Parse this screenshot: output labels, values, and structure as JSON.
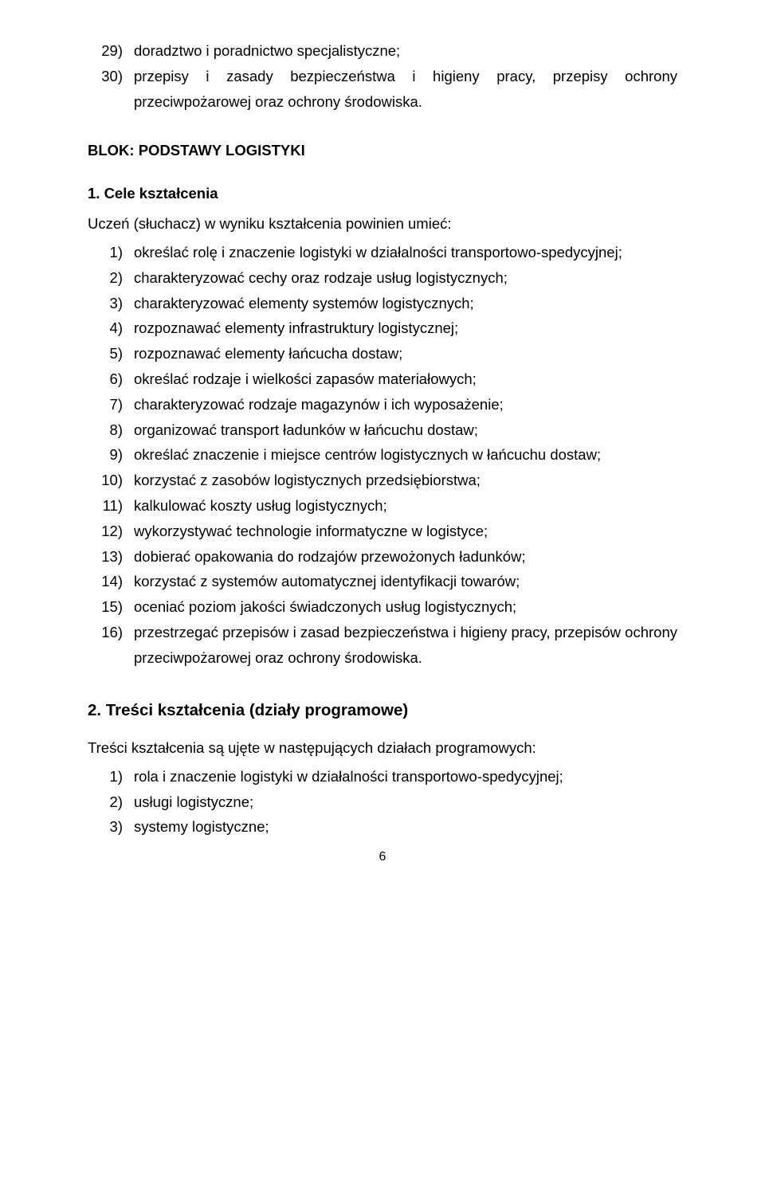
{
  "top_list": [
    {
      "n": "29)",
      "t": "doradztwo i poradnictwo specjalistyczne;",
      "indent": true
    },
    {
      "n": "30)",
      "t": "przepisy i zasady bezpieczeństwa i higieny pracy, przepisy ochrony przeciwpożarowej oraz ochrony środowiska.",
      "indent": true
    }
  ],
  "block_title": "BLOK: PODSTAWY LOGISTYKI",
  "goals_title": "1. Cele kształcenia",
  "goals_intro": "Uczeń (słuchacz) w wyniku kształcenia powinien umieć:",
  "goals_list": [
    {
      "n": "1)",
      "t": "określać rolę i znaczenie logistyki w działalności transportowo-spedycyjnej;"
    },
    {
      "n": "2)",
      "t": "charakteryzować cechy oraz rodzaje usług logistycznych;"
    },
    {
      "n": "3)",
      "t": "charakteryzować elementy systemów logistycznych;"
    },
    {
      "n": "4)",
      "t": "rozpoznawać elementy infrastruktury logistycznej;"
    },
    {
      "n": "5)",
      "t": "rozpoznawać elementy łańcucha dostaw;"
    },
    {
      "n": "6)",
      "t": "określać rodzaje i wielkości zapasów materiałowych;"
    },
    {
      "n": "7)",
      "t": "charakteryzować rodzaje magazynów i ich wyposażenie;"
    },
    {
      "n": "8)",
      "t": "organizować transport ładunków w łańcuchu dostaw;"
    },
    {
      "n": "9)",
      "t": "określać znaczenie i miejsce centrów logistycznych w łańcuchu dostaw;"
    },
    {
      "n": "10)",
      "t": "korzystać z zasobów logistycznych przedsiębiorstwa;"
    },
    {
      "n": "11)",
      "t": "kalkulować koszty usług logistycznych;"
    },
    {
      "n": "12)",
      "t": "wykorzystywać technologie informatyczne w logistyce;"
    },
    {
      "n": "13)",
      "t": "dobierać opakowania do rodzajów przewożonych ładunków;"
    },
    {
      "n": "14)",
      "t": "korzystać z systemów automatycznej identyfikacji towarów;"
    },
    {
      "n": "15)",
      "t": "oceniać poziom jakości świadczonych usług logistycznych;"
    },
    {
      "n": "16)",
      "t": "przestrzegać przepisów i zasad bezpieczeństwa i higieny pracy, przepisów ochrony przeciwpożarowej oraz ochrony środowiska."
    }
  ],
  "contents_title": "2. Treści kształcenia (działy programowe)",
  "contents_intro": "Treści kształcenia są ujęte w następujących działach programowych:",
  "contents_list": [
    {
      "n": "1)",
      "t": "rola i znaczenie logistyki w działalności transportowo-spedycyjnej;"
    },
    {
      "n": "2)",
      "t": "usługi logistyczne;"
    },
    {
      "n": "3)",
      "t": "systemy logistyczne;"
    }
  ],
  "page_number": "6"
}
